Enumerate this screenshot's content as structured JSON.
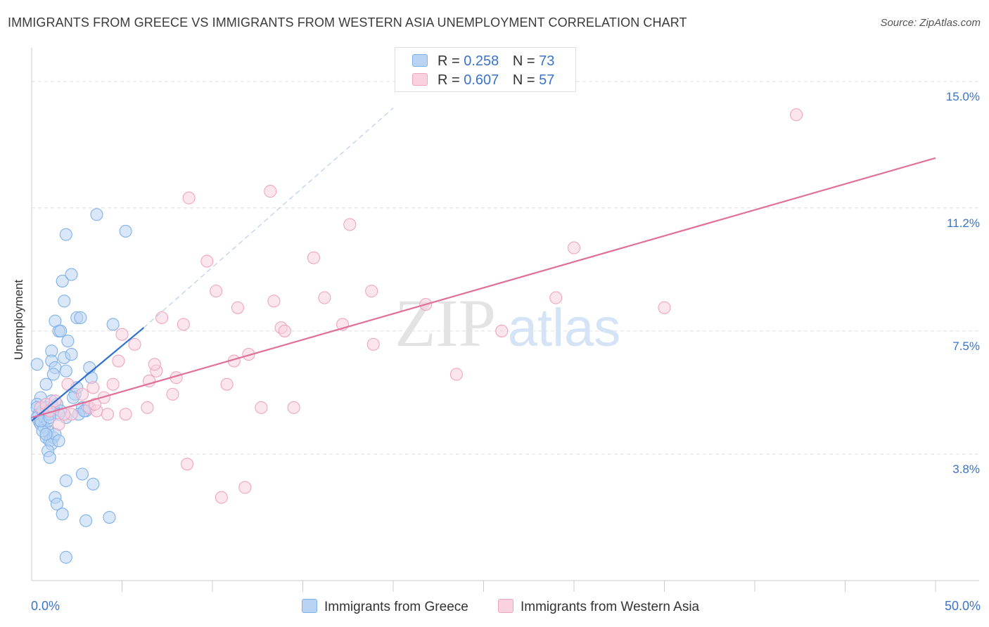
{
  "chart_data": {
    "type": "scatter",
    "title": "IMMIGRANTS FROM GREECE VS IMMIGRANTS FROM WESTERN ASIA UNEMPLOYMENT CORRELATION CHART",
    "source": "Source: ZipAtlas.com",
    "ylabel": "Unemployment",
    "xlabel": "",
    "xlim": [
      0,
      50
    ],
    "ylim": [
      0,
      15.8
    ],
    "x_tick_labels": [
      "0.0%",
      "50.0%"
    ],
    "y_ticks": [
      {
        "value": 3.8,
        "label": "3.8%"
      },
      {
        "value": 7.5,
        "label": "7.5%"
      },
      {
        "value": 11.2,
        "label": "11.2%"
      },
      {
        "value": 15.0,
        "label": "15.0%"
      }
    ],
    "watermark": {
      "zip": "ZIP",
      "atlas": "atlas"
    },
    "legend_stats": [
      {
        "r_label": "R =",
        "r_value": "0.258",
        "n_label": "N =",
        "n_value": "73"
      },
      {
        "r_label": "R =",
        "r_value": "0.607",
        "n_label": "N =",
        "n_value": "57"
      }
    ],
    "series": [
      {
        "name": "Immigrants from Greece",
        "color": "#7fb1ea",
        "fill": "#b9d4f3",
        "line_color": "#2e6fcf",
        "trend": {
          "x0": 0.0,
          "y0": 4.8,
          "x1": 6.2,
          "y1": 7.6,
          "dashed_to_x": 20.0,
          "dashed_to_y": 14.2
        },
        "points": [
          [
            0.3,
            6.5
          ],
          [
            0.5,
            5.5
          ],
          [
            0.3,
            5.3
          ],
          [
            0.3,
            5.2
          ],
          [
            0.4,
            5.0
          ],
          [
            0.3,
            4.9
          ],
          [
            0.4,
            4.8
          ],
          [
            0.5,
            4.7
          ],
          [
            0.6,
            5.1
          ],
          [
            0.8,
            5.2
          ],
          [
            0.7,
            4.9
          ],
          [
            0.7,
            4.6
          ],
          [
            0.9,
            4.5
          ],
          [
            0.8,
            4.3
          ],
          [
            1.0,
            4.2
          ],
          [
            1.2,
            4.3
          ],
          [
            1.1,
            4.1
          ],
          [
            1.3,
            4.4
          ],
          [
            1.5,
            4.2
          ],
          [
            0.6,
            4.5
          ],
          [
            0.9,
            4.8
          ],
          [
            1.0,
            5.0
          ],
          [
            1.1,
            5.4
          ],
          [
            1.2,
            5.2
          ],
          [
            1.4,
            5.3
          ],
          [
            0.8,
            5.9
          ],
          [
            1.1,
            6.9
          ],
          [
            1.1,
            6.6
          ],
          [
            1.3,
            6.4
          ],
          [
            1.5,
            7.5
          ],
          [
            1.3,
            7.8
          ],
          [
            1.6,
            7.5
          ],
          [
            1.8,
            6.7
          ],
          [
            1.9,
            6.3
          ],
          [
            2.0,
            7.2
          ],
          [
            1.8,
            8.4
          ],
          [
            2.2,
            6.8
          ],
          [
            1.7,
            9.0
          ],
          [
            2.2,
            9.2
          ],
          [
            2.5,
            7.9
          ],
          [
            2.7,
            7.9
          ],
          [
            1.9,
            10.4
          ],
          [
            3.6,
            11.0
          ],
          [
            5.2,
            10.5
          ],
          [
            3.2,
            6.4
          ],
          [
            4.5,
            7.7
          ],
          [
            3.3,
            6.1
          ],
          [
            2.4,
            5.6
          ],
          [
            2.5,
            5.8
          ],
          [
            2.8,
            5.2
          ],
          [
            3.0,
            5.1
          ],
          [
            3.1,
            5.2
          ],
          [
            2.6,
            5.0
          ],
          [
            1.9,
            4.9
          ],
          [
            1.6,
            5.1
          ],
          [
            1.5,
            5.0
          ],
          [
            0.9,
            3.9
          ],
          [
            1.0,
            3.7
          ],
          [
            1.9,
            3.0
          ],
          [
            2.8,
            3.2
          ],
          [
            3.4,
            2.9
          ],
          [
            1.3,
            2.5
          ],
          [
            1.4,
            2.3
          ],
          [
            1.7,
            2.0
          ],
          [
            3.0,
            1.8
          ],
          [
            4.3,
            1.9
          ],
          [
            1.9,
            0.7
          ],
          [
            0.5,
            4.8
          ],
          [
            0.8,
            4.4
          ],
          [
            2.3,
            5.5
          ],
          [
            1.2,
            6.2
          ],
          [
            2.9,
            5.1
          ],
          [
            1.0,
            4.9
          ]
        ]
      },
      {
        "name": "Immigrants from Western Asia",
        "color": "#f0a5bf",
        "fill": "#fad1de",
        "line_color": "#e0709a",
        "trend": {
          "x0": 0.0,
          "y0": 4.9,
          "x1": 50.0,
          "y1": 12.7
        },
        "points": [
          [
            0.5,
            5.2
          ],
          [
            0.8,
            5.3
          ],
          [
            1.0,
            5.1
          ],
          [
            1.3,
            5.4
          ],
          [
            1.5,
            4.7
          ],
          [
            2.0,
            5.9
          ],
          [
            2.2,
            5.0
          ],
          [
            2.8,
            5.6
          ],
          [
            3.2,
            5.2
          ],
          [
            3.4,
            5.8
          ],
          [
            3.6,
            5.1
          ],
          [
            4.0,
            5.5
          ],
          [
            4.2,
            5.0
          ],
          [
            4.5,
            5.9
          ],
          [
            4.8,
            6.6
          ],
          [
            5.2,
            5.0
          ],
          [
            5.0,
            7.4
          ],
          [
            5.7,
            7.1
          ],
          [
            6.4,
            5.2
          ],
          [
            6.5,
            6.0
          ],
          [
            6.9,
            6.3
          ],
          [
            7.2,
            7.9
          ],
          [
            7.8,
            5.6
          ],
          [
            8.0,
            6.1
          ],
          [
            8.4,
            7.7
          ],
          [
            8.7,
            11.5
          ],
          [
            9.7,
            9.6
          ],
          [
            10.2,
            8.7
          ],
          [
            10.8,
            5.9
          ],
          [
            11.2,
            6.6
          ],
          [
            11.4,
            8.2
          ],
          [
            12.0,
            6.8
          ],
          [
            12.7,
            5.2
          ],
          [
            13.2,
            11.7
          ],
          [
            13.4,
            8.4
          ],
          [
            13.8,
            7.6
          ],
          [
            14.0,
            7.5
          ],
          [
            14.5,
            5.2
          ],
          [
            15.6,
            9.7
          ],
          [
            16.2,
            8.5
          ],
          [
            17.2,
            7.7
          ],
          [
            17.6,
            10.7
          ],
          [
            18.8,
            8.7
          ],
          [
            18.9,
            7.1
          ],
          [
            21.8,
            8.3
          ],
          [
            23.5,
            6.2
          ],
          [
            26.0,
            7.5
          ],
          [
            29.0,
            8.5
          ],
          [
            30.0,
            10.0
          ],
          [
            35.0,
            8.2
          ],
          [
            42.3,
            14.0
          ],
          [
            10.5,
            2.5
          ],
          [
            11.8,
            2.8
          ],
          [
            8.6,
            3.5
          ],
          [
            1.8,
            5.0
          ],
          [
            3.5,
            5.3
          ],
          [
            6.8,
            6.5
          ]
        ]
      }
    ]
  }
}
